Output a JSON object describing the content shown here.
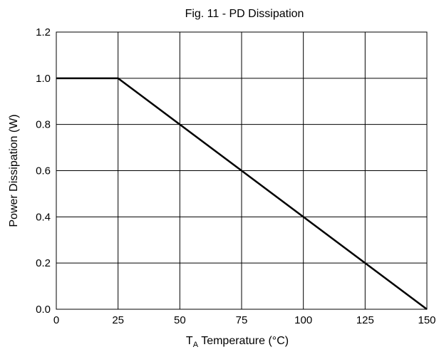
{
  "chart_data": {
    "type": "line",
    "title": "Fig. 11 - PD Dissipation",
    "xlabel_main": "T",
    "xlabel_sub": "A",
    "xlabel_rest": " Temperature (°C)",
    "ylabel": "Power Dissipation (W)",
    "xlim": [
      0,
      150
    ],
    "ylim": [
      0,
      1.2
    ],
    "x_ticks": [
      0,
      25,
      50,
      75,
      100,
      125,
      150
    ],
    "x_tick_labels": [
      "0",
      "25",
      "50",
      "75",
      "100",
      "125",
      "150"
    ],
    "y_ticks": [
      0,
      0.2,
      0.4,
      0.6,
      0.8,
      1.0,
      1.2
    ],
    "y_tick_labels": [
      "0.0",
      "0.2",
      "0.4",
      "0.6",
      "0.8",
      "1.0",
      "1.2"
    ],
    "grid": true,
    "series": [
      {
        "x": [
          0,
          25,
          150
        ],
        "y": [
          1.0,
          1.0,
          0.0
        ],
        "color": "#000000"
      }
    ]
  }
}
